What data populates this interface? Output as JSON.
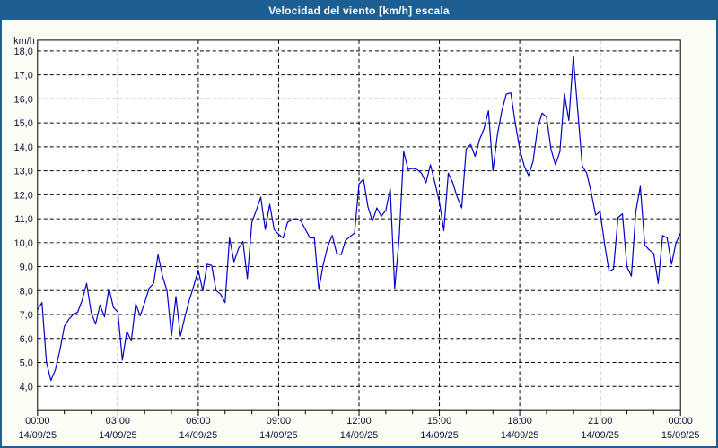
{
  "window": {
    "title": "Velocidad del viento [km/h] escala"
  },
  "colors": {
    "titlebar_bg": "#1d5f93",
    "titlebar_text": "#ffffff",
    "frame_border": "#1d5f93",
    "page_bg": "#fcfdf5",
    "plot_bg": "#ffffff",
    "plot_border": "#000000",
    "grid": "#000000",
    "axis_text": "#10103c",
    "line": "#0000c8"
  },
  "chart_data": {
    "type": "line",
    "title": "Velocidad del viento [km/h] escala",
    "ylabel": "km/h",
    "legend": "none",
    "grid": "dashed",
    "y_axis": {
      "min": 4.0,
      "max": 18.0,
      "step": 1.0,
      "tick_labels": [
        "18,0",
        "17,0",
        "16,0",
        "15,0",
        "14,0",
        "13,0",
        "12,0",
        "11,0",
        "10,0",
        "9,0",
        "8,0",
        "7,0",
        "6,0",
        "5,0",
        "4,0"
      ],
      "units_label": "km/h"
    },
    "x_axis": {
      "span_hours": 24,
      "minor_tick_minutes": 60,
      "major_tick_minutes": 180,
      "major_ticks": [
        {
          "time": "00:00",
          "date": "14/09/25"
        },
        {
          "time": "03:00",
          "date": "14/09/25"
        },
        {
          "time": "06:00",
          "date": "14/09/25"
        },
        {
          "time": "09:00",
          "date": "14/09/25"
        },
        {
          "time": "12:00",
          "date": "14/09/25"
        },
        {
          "time": "15:00",
          "date": "14/09/25"
        },
        {
          "time": "18:00",
          "date": "14/09/25"
        },
        {
          "time": "21:00",
          "date": "14/09/25"
        },
        {
          "time": "00:00",
          "date": "15/09/25"
        }
      ]
    },
    "series": [
      {
        "name": "Velocidad del viento",
        "color": "#0000c8",
        "start_time": "00:00",
        "sample_interval_minutes": 10,
        "values": [
          7.2,
          7.5,
          5.0,
          4.25,
          4.7,
          5.5,
          6.5,
          6.8,
          7.0,
          7.1,
          7.6,
          8.3,
          7.1,
          6.6,
          7.4,
          6.9,
          8.1,
          7.3,
          7.1,
          5.1,
          6.3,
          5.9,
          7.45,
          6.95,
          7.5,
          8.1,
          8.3,
          9.5,
          8.6,
          8.0,
          6.1,
          7.75,
          6.1,
          6.9,
          7.6,
          8.2,
          8.85,
          8.0,
          9.1,
          9.05,
          8.0,
          7.85,
          7.5,
          10.2,
          9.2,
          9.75,
          10.05,
          8.5,
          10.85,
          11.35,
          11.9,
          10.55,
          11.6,
          10.55,
          10.35,
          10.2,
          10.85,
          10.95,
          11.0,
          10.9,
          10.55,
          10.2,
          10.2,
          8.05,
          9.1,
          9.85,
          10.3,
          9.55,
          9.5,
          10.1,
          10.25,
          10.4,
          12.45,
          12.65,
          11.5,
          10.9,
          11.45,
          11.1,
          11.35,
          12.25,
          8.1,
          10.2,
          13.8,
          13.05,
          13.1,
          13.05,
          12.9,
          12.5,
          13.25,
          12.5,
          11.7,
          10.5,
          12.9,
          12.5,
          11.9,
          11.45,
          13.9,
          14.1,
          13.6,
          14.3,
          14.75,
          15.5,
          13.0,
          14.5,
          15.5,
          16.2,
          16.25,
          15.0,
          13.9,
          13.2,
          12.8,
          13.4,
          14.8,
          15.4,
          15.25,
          13.9,
          13.25,
          13.8,
          16.2,
          15.1,
          17.75,
          15.5,
          13.2,
          12.9,
          12.1,
          11.15,
          11.3,
          9.95,
          8.8,
          8.9,
          11.05,
          11.2,
          9.0,
          8.6,
          11.3,
          12.35,
          9.9,
          9.7,
          9.55,
          8.3,
          10.3,
          10.2,
          9.1,
          10.0,
          10.4
        ]
      }
    ]
  }
}
